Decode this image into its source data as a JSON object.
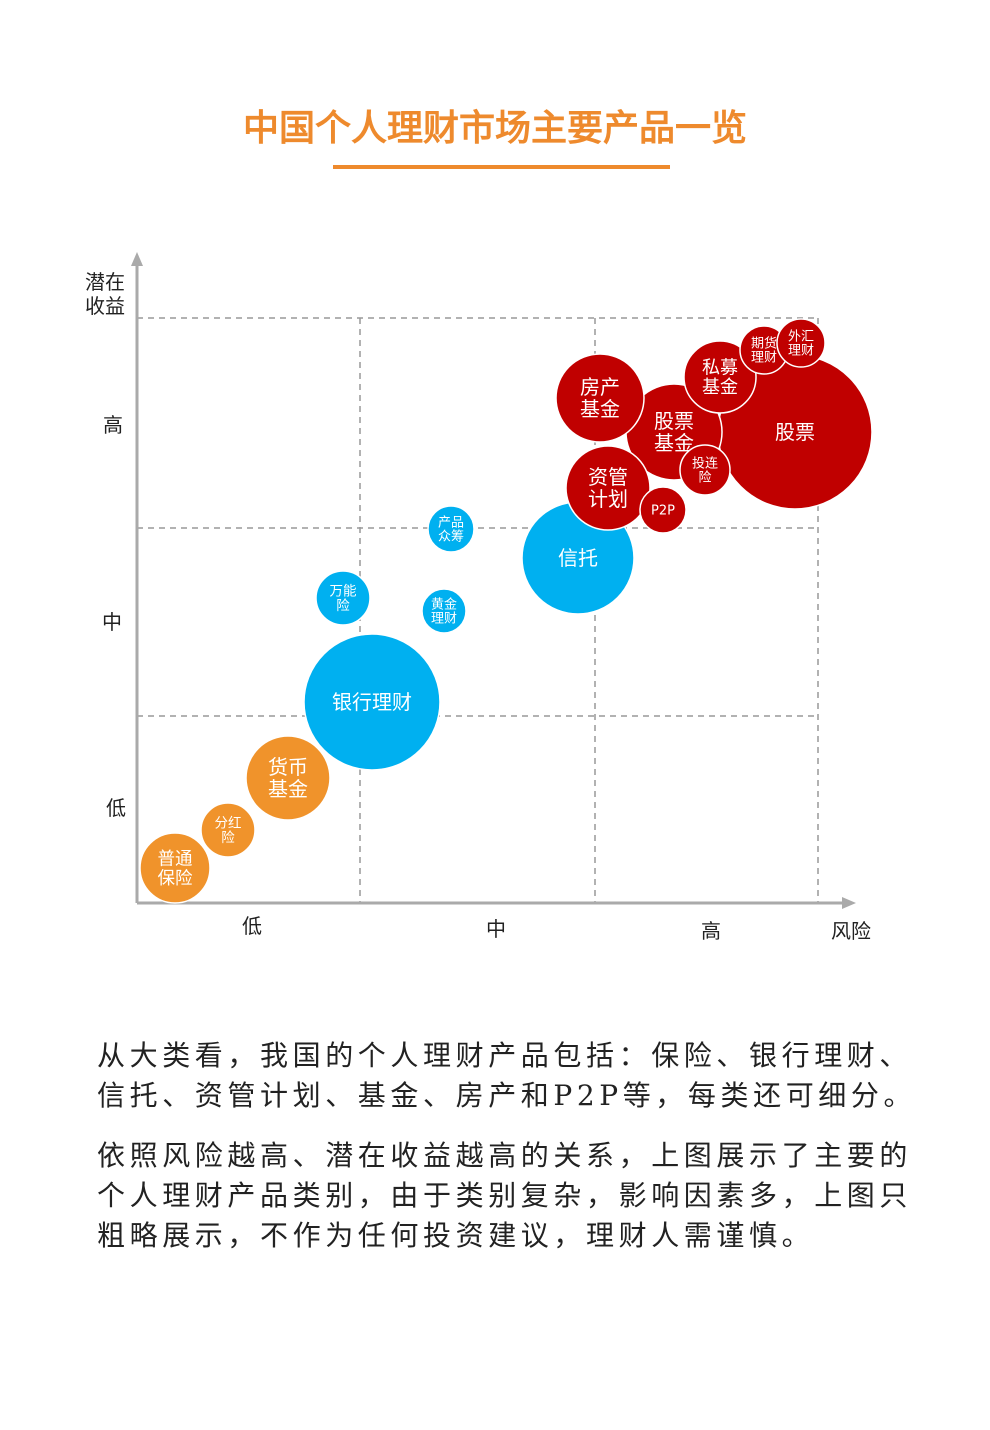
{
  "header": {
    "title": "中国个人理财市场主要产品一览"
  },
  "axes": {
    "y_label": [
      "潜在",
      "收益"
    ],
    "y_levels": [
      "高",
      "中",
      "低"
    ],
    "x_levels": [
      "低",
      "中",
      "高"
    ],
    "x_label": "风险"
  },
  "nodes": [
    {
      "label": [
        "普通",
        "保险"
      ]
    },
    {
      "label": [
        "分红",
        "险"
      ]
    },
    {
      "label": [
        "货币",
        "基金"
      ]
    },
    {
      "label": [
        "银行理财"
      ]
    },
    {
      "label": [
        "万能",
        "险"
      ]
    },
    {
      "label": [
        "黄金",
        "理财"
      ]
    },
    {
      "label": [
        "产品",
        "众筹"
      ]
    },
    {
      "label": [
        "信托"
      ]
    },
    {
      "label": [
        "股票"
      ]
    },
    {
      "label": [
        "股票",
        "基金"
      ]
    },
    {
      "label": [
        "房产",
        "基金"
      ]
    },
    {
      "label": [
        "资管",
        "计划"
      ]
    },
    {
      "label": [
        "P2P"
      ]
    },
    {
      "label": [
        "投连",
        "险"
      ]
    },
    {
      "label": [
        "私募",
        "基金"
      ]
    },
    {
      "label": [
        "期货",
        "理财"
      ]
    },
    {
      "label": [
        "外汇",
        "理财"
      ]
    }
  ],
  "paragraphs": [
    [
      "从大类看，我国的个人理财产品包括：保险、银行理财、",
      "信托、资管计划、基金、房产和P2P等，每类还可细分。"
    ],
    [
      "依照风险越高、潜在收益越高的关系，上图展示了主要的",
      "个人理财产品类别，由于类别复杂，影响因素多，上图只",
      "粗略展示，不作为任何投资建议，理财人需谨慎。"
    ]
  ]
}
